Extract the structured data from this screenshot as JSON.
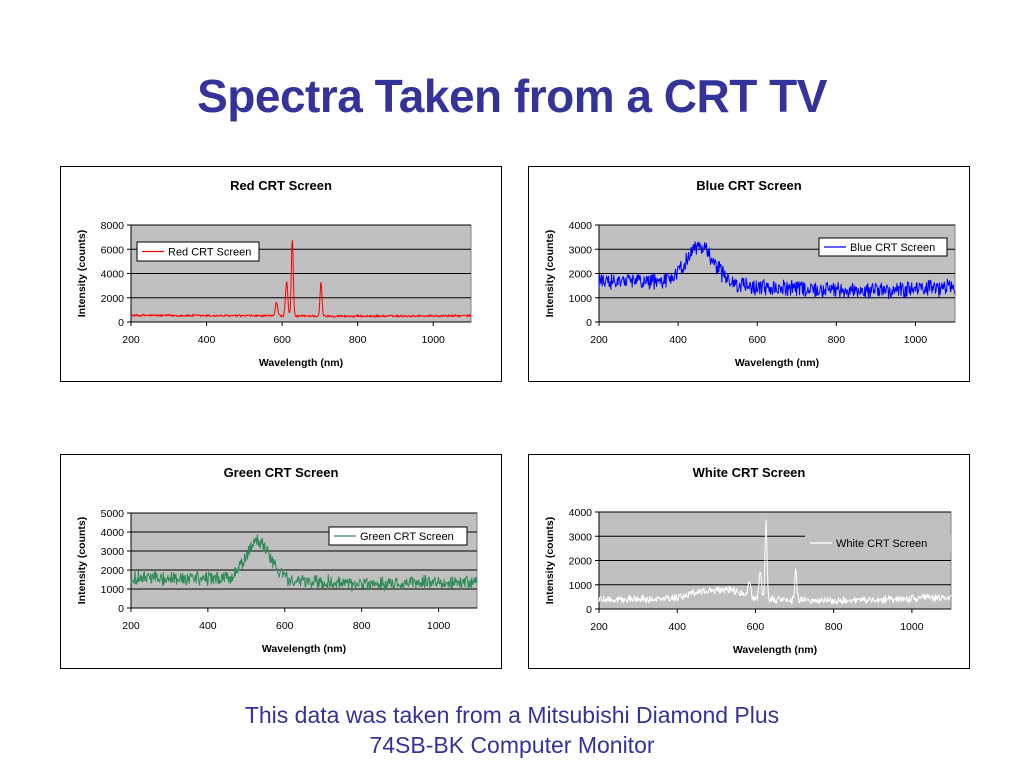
{
  "title": "Spectra Taken from a CRT TV",
  "caption": {
    "line1": "This data was taken from a Mitsubishi Diamond Plus",
    "line2": "74SB-BK Computer Monitor"
  },
  "colors": {
    "title_text": "#333399",
    "plot_background": "#c0c0c0",
    "red": "#ff0000",
    "blue": "#0000ff",
    "green": "#2e8b57",
    "white": "#ffffff"
  },
  "chart_data": [
    {
      "id": "red",
      "type": "line",
      "title": "Red CRT Screen",
      "xlabel": "Wavelength (nm)",
      "ylabel": "Intensity (counts)",
      "xlim": [
        200,
        1100
      ],
      "ylim": [
        0,
        8000
      ],
      "xticks": [
        200,
        400,
        600,
        800,
        1000
      ],
      "yticks": [
        0,
        2000,
        4000,
        6000,
        8000
      ],
      "grid": "horizontal",
      "legend": "top-left",
      "series": [
        {
          "name": "Red CRT Screen",
          "color": "#ff0000",
          "baseline": [
            [
              200,
              550
            ],
            [
              400,
              520
            ],
            [
              600,
              500
            ],
            [
              800,
              480
            ],
            [
              1000,
              500
            ],
            [
              1100,
              520
            ]
          ],
          "noise": 180,
          "peaks": [
            [
              540,
              15,
              0
            ],
            [
              585,
              3,
              1200
            ],
            [
              612,
              3,
              2800
            ],
            [
              627,
              2.5,
              6400
            ],
            [
              703,
              2.5,
              2800
            ]
          ]
        }
      ]
    },
    {
      "id": "blue",
      "type": "line",
      "title": "Blue CRT Screen",
      "xlabel": "Wavelength (nm)",
      "ylabel": "Intensity (counts)",
      "xlim": [
        200,
        1100
      ],
      "ylim": [
        0,
        4000
      ],
      "xticks": [
        200,
        400,
        600,
        800,
        1000
      ],
      "yticks": [
        0,
        1000,
        2000,
        3000,
        4000
      ],
      "grid": "horizontal",
      "legend": "top-right",
      "series": [
        {
          "name": "Blue CRT Screen",
          "color": "#0000ff",
          "baseline": [
            [
              200,
              1700
            ],
            [
              300,
              1700
            ],
            [
              400,
              1750
            ],
            [
              500,
              1750
            ],
            [
              600,
              1400
            ],
            [
              800,
              1300
            ],
            [
              1000,
              1350
            ],
            [
              1100,
              1450
            ]
          ],
          "noise": 600,
          "peaks": [
            [
              455,
              32,
              1400
            ]
          ]
        }
      ]
    },
    {
      "id": "green",
      "type": "line",
      "title": "Green CRT Screen",
      "xlabel": "Wavelength (nm)",
      "ylabel": "Intensity (counts)",
      "xlim": [
        200,
        1100
      ],
      "ylim": [
        0,
        5000
      ],
      "xticks": [
        200,
        400,
        600,
        800,
        1000
      ],
      "yticks": [
        0,
        1000,
        2000,
        3000,
        4000,
        5000
      ],
      "grid": "horizontal",
      "legend": "top-right",
      "series": [
        {
          "name": "Green CRT Screen",
          "color": "#2e8b57",
          "baseline": [
            [
              200,
              1600
            ],
            [
              400,
              1550
            ],
            [
              600,
              1450
            ],
            [
              800,
              1250
            ],
            [
              1000,
              1350
            ],
            [
              1100,
              1400
            ]
          ],
          "noise": 650,
          "peaks": [
            [
              530,
              32,
              2000
            ]
          ]
        }
      ]
    },
    {
      "id": "white",
      "type": "line",
      "title": "White CRT Screen",
      "xlabel": "Wavelength (nm)",
      "ylabel": "Intensity (counts)",
      "xlim": [
        200,
        1100
      ],
      "ylim": [
        0,
        4000
      ],
      "xticks": [
        200,
        400,
        600,
        800,
        1000
      ],
      "yticks": [
        0,
        1000,
        2000,
        3000,
        4000
      ],
      "grid": "horizontal",
      "legend": "top-right",
      "series": [
        {
          "name": "White CRT Screen",
          "color": "#ffffff",
          "baseline": [
            [
              200,
              400
            ],
            [
              400,
              420
            ],
            [
              600,
              400
            ],
            [
              800,
              350
            ],
            [
              1000,
              420
            ],
            [
              1100,
              500
            ]
          ],
          "noise": 280,
          "peaks": [
            [
              455,
              30,
              250
            ],
            [
              530,
              35,
              400
            ],
            [
              585,
              3,
              700
            ],
            [
              612,
              3,
              1200
            ],
            [
              627,
              2.5,
              3200
            ],
            [
              703,
              2.5,
              1300
            ]
          ]
        }
      ]
    }
  ]
}
